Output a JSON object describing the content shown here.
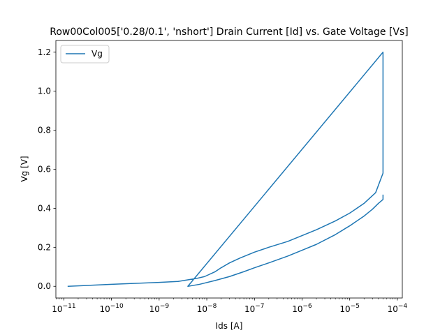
{
  "chart_data": {
    "type": "line",
    "title": "Row00Col005['0.28/0.1', 'nshort'] Drain Current [Id] vs. Gate Voltage [Vs]",
    "xlabel": "Ids [A]",
    "ylabel": "Vg [V]",
    "xscale": "log",
    "xlim": [
      6.8e-12,
      0.000127
    ],
    "ylim": [
      -0.06,
      1.26
    ],
    "xticks": [
      {
        "value": 1e-11,
        "base": "10",
        "exp": "−11"
      },
      {
        "value": 1e-10,
        "base": "10",
        "exp": "−10"
      },
      {
        "value": 1e-09,
        "base": "10",
        "exp": "−9"
      },
      {
        "value": 1e-08,
        "base": "10",
        "exp": "−8"
      },
      {
        "value": 1e-07,
        "base": "10",
        "exp": "−7"
      },
      {
        "value": 1e-06,
        "base": "10",
        "exp": "−6"
      },
      {
        "value": 1e-05,
        "base": "10",
        "exp": "−5"
      },
      {
        "value": 0.0001,
        "base": "10",
        "exp": "−4"
      }
    ],
    "yticks": [
      {
        "value": 0.0,
        "label": "0.0"
      },
      {
        "value": 0.2,
        "label": "0.2"
      },
      {
        "value": 0.4,
        "label": "0.4"
      },
      {
        "value": 0.6,
        "label": "0.6"
      },
      {
        "value": 0.8,
        "label": "0.8"
      },
      {
        "value": 1.0,
        "label": "1.0"
      },
      {
        "value": 1.2,
        "label": "1.2"
      }
    ],
    "grid": false,
    "legend_position": "top-left",
    "series": [
      {
        "name": "Vg",
        "color": "#1f77b4",
        "x": [
          1.2e-11,
          1e-10,
          1e-09,
          2.5e-09,
          6e-09,
          9e-09,
          1.5e-08,
          2e-08,
          3e-08,
          5e-08,
          1e-07,
          2e-07,
          5e-07,
          1e-06,
          2e-06,
          5e-06,
          1e-05,
          2e-05,
          3.5e-05,
          5e-05,
          5e-05,
          5e-05,
          5e-05,
          4e-09,
          7e-09,
          1.5e-08,
          3e-08,
          6e-08,
          1e-07,
          2e-07,
          5e-07,
          1e-06,
          2e-06,
          5e-06,
          1e-05,
          2e-05,
          3e-05,
          4e-05,
          5e-05,
          5e-05
        ],
        "y": [
          0.0,
          0.01,
          0.02,
          0.025,
          0.04,
          0.05,
          0.075,
          0.095,
          0.12,
          0.145,
          0.175,
          0.2,
          0.23,
          0.26,
          0.29,
          0.335,
          0.375,
          0.425,
          0.48,
          0.58,
          1.2,
          1.2,
          1.2,
          0.0,
          0.01,
          0.03,
          0.05,
          0.075,
          0.095,
          0.12,
          0.155,
          0.185,
          0.215,
          0.265,
          0.31,
          0.36,
          0.395,
          0.425,
          0.445,
          0.47
        ]
      }
    ]
  }
}
